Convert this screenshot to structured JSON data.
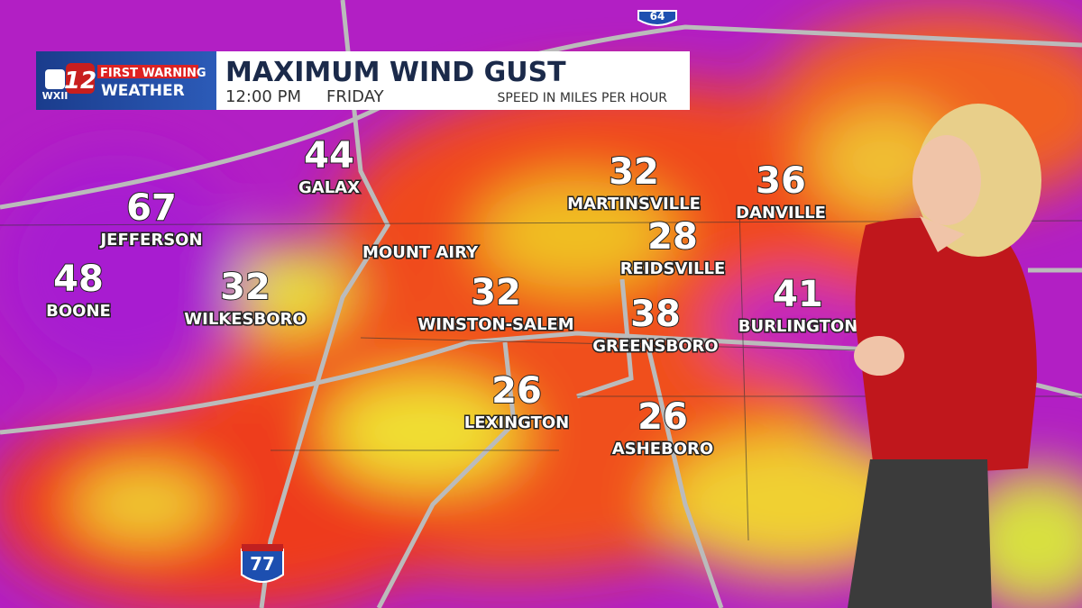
{
  "header": {
    "station": "WXII",
    "channel": "12",
    "brand_top": "FIRST WARNING",
    "brand_bottom": "WEATHER",
    "title": "MAXIMUM WIND GUST",
    "time": "12:00 PM",
    "day": "FRIDAY",
    "units": "SPEED IN MILES PER HOUR"
  },
  "highways": [
    "64",
    "77"
  ],
  "cities": [
    {
      "name": "GALAX",
      "gust": "44"
    },
    {
      "name": "JEFFERSON",
      "gust": "67"
    },
    {
      "name": "BOONE",
      "gust": "48"
    },
    {
      "name": "WILKESBORO",
      "gust": "32"
    },
    {
      "name": "MOUNT AIRY"
    },
    {
      "name": "MARTINSVILLE",
      "gust": "32"
    },
    {
      "name": "DANVILLE",
      "gust": "36"
    },
    {
      "name": "REIDSVILLE",
      "gust": "28"
    },
    {
      "name": "WINSTON-SALEM",
      "gust": "32"
    },
    {
      "name": "GREENSBORO",
      "gust": "38"
    },
    {
      "name": "BURLINGTON",
      "gust": "41"
    },
    {
      "name": "LEXINGTON",
      "gust": "26"
    },
    {
      "name": "ASHEBORO",
      "gust": "26"
    }
  ]
}
